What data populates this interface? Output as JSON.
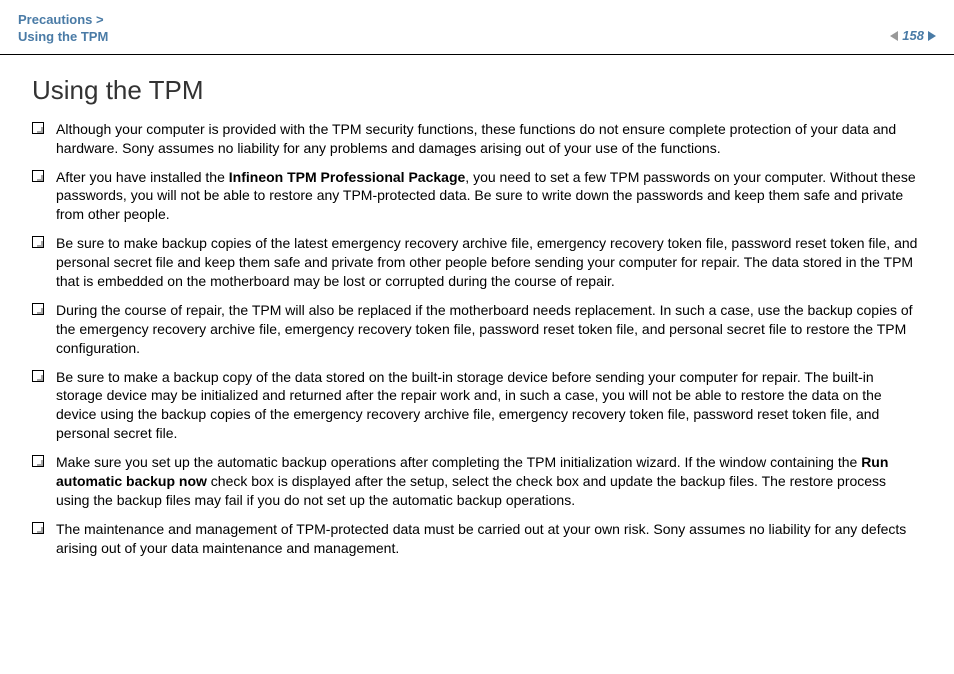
{
  "header": {
    "breadcrumb_line1": "Precautions >",
    "breadcrumb_line2": "Using the TPM",
    "page_number": "158"
  },
  "content": {
    "title": "Using the TPM",
    "bullets": [
      {
        "text_before": "Although your computer is provided with the TPM security functions, these functions do not ensure complete protection of your data and hardware. Sony assumes no liability for any problems and damages arising out of your use of the functions.",
        "bold1": "",
        "text_mid": "",
        "bold2": "",
        "text_after": ""
      },
      {
        "text_before": "After you have installed the ",
        "bold1": "Infineon TPM Professional Package",
        "text_mid": ", you need to set a few TPM passwords on your computer. Without these passwords, you will not be able to restore any TPM-protected data. Be sure to write down the passwords and keep them safe and private from other people.",
        "bold2": "",
        "text_after": ""
      },
      {
        "text_before": "Be sure to make backup copies of the latest emergency recovery archive file, emergency recovery token file, password reset token file, and personal secret file and keep them safe and private from other people before sending your computer for repair. The data stored in the TPM that is embedded on the motherboard may be lost or corrupted during the course of repair.",
        "bold1": "",
        "text_mid": "",
        "bold2": "",
        "text_after": ""
      },
      {
        "text_before": "During the course of repair, the TPM will also be replaced if the motherboard needs replacement. In such a case, use the backup copies of the emergency recovery archive file, emergency recovery token file, password reset token file, and personal secret file to restore the TPM configuration.",
        "bold1": "",
        "text_mid": "",
        "bold2": "",
        "text_after": ""
      },
      {
        "text_before": "Be sure to make a backup copy of the data stored on the built-in storage device before sending your computer for repair. The built-in storage device may be initialized and returned after the repair work and, in such a case, you will not be able to restore the data on the device using the backup copies of the emergency recovery archive file, emergency recovery token file, password reset token file, and personal secret file.",
        "bold1": "",
        "text_mid": "",
        "bold2": "",
        "text_after": ""
      },
      {
        "text_before": "Make sure you set up the automatic backup operations after completing the TPM initialization wizard. If the window containing the ",
        "bold1": "Run automatic backup now",
        "text_mid": " check box is displayed after the setup, select the check box and update the backup files. The restore process using the backup files may fail if you do not set up the automatic backup operations.",
        "bold2": "",
        "text_after": ""
      },
      {
        "text_before": "The maintenance and management of TPM-protected data must be carried out at your own risk. Sony assumes no liability for any defects arising out of your data maintenance and management.",
        "bold1": "",
        "text_mid": "",
        "bold2": "",
        "text_after": ""
      }
    ]
  },
  "styling": {
    "breadcrumb_color": "#4a7ba6",
    "page_number_color": "#4a7ba6",
    "arrow_left_color": "#999999",
    "arrow_right_color": "#4a7ba6",
    "title_fontsize": 26,
    "body_fontsize": 14,
    "breadcrumb_fontsize": 13,
    "background_color": "#ffffff",
    "text_color": "#000000",
    "border_color": "#000000"
  }
}
